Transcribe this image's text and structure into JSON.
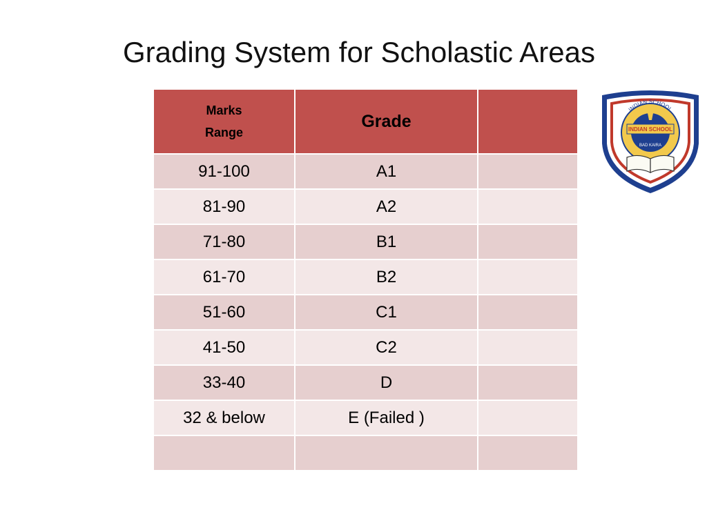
{
  "title": "Grading System for Scholastic Areas",
  "table": {
    "headers": [
      "Marks\nRange",
      "Grade",
      ""
    ],
    "rows": [
      [
        "91-100",
        "A1",
        ""
      ],
      [
        "81-90",
        "A2",
        ""
      ],
      [
        "71-80",
        "B1",
        ""
      ],
      [
        "61-70",
        "B2",
        ""
      ],
      [
        "51-60",
        "C1",
        ""
      ],
      [
        "41-50",
        "C2",
        ""
      ],
      [
        "33-40",
        "D",
        ""
      ],
      [
        "32 & below",
        "E (Failed )",
        ""
      ],
      [
        "",
        "",
        ""
      ]
    ]
  },
  "logo": {
    "text_top": "INDIAN SCHOOL",
    "text_band": "INDIAN SCHOOL",
    "text_bottom": "BAD KAIRA"
  },
  "colors": {
    "header": "#c0504d",
    "row_odd": "#e6cfcf",
    "row_even": "#f3e7e7",
    "shield_border": "#1e3f8f"
  }
}
